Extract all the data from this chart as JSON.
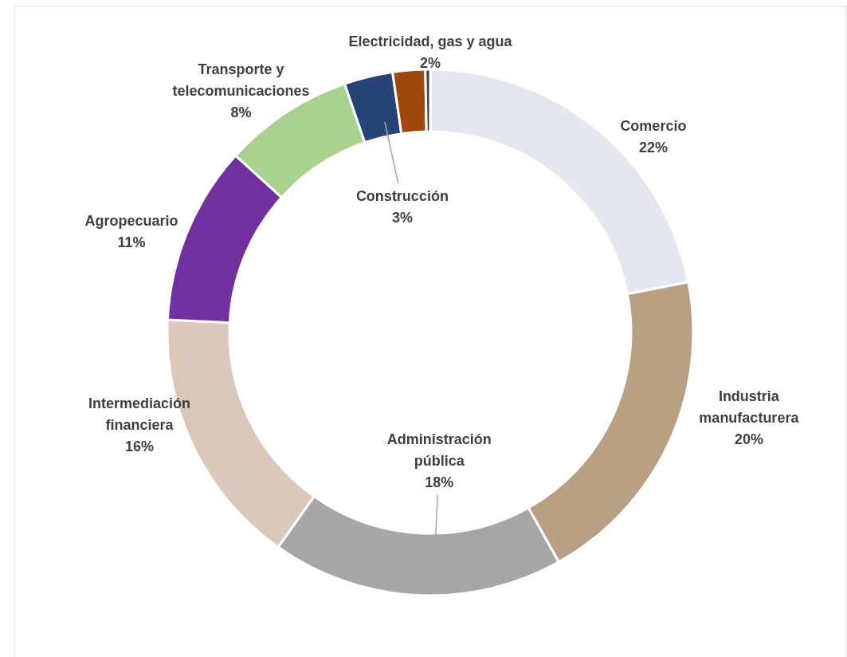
{
  "chart_data": {
    "type": "donut",
    "categories": [
      "Comercio",
      "Industria manufacturera",
      "Administración pública",
      "Intermediación financiera",
      "Agropecuario",
      "Transporte y telecomunicaciones",
      "Construcción",
      "Electricidad, gas y agua",
      null
    ],
    "values": [
      22,
      20,
      18,
      16,
      11,
      8,
      3,
      2,
      0.3
    ],
    "colors": [
      "#e4e7ef",
      "#b8a183",
      "#a6a6a6",
      "#dbc8bb",
      "#7030a0",
      "#a9d18e",
      "#264478",
      "#9e480e",
      "#404040"
    ],
    "value_labels": [
      "22%",
      "20%",
      "18%",
      "16%",
      "11%",
      "8%",
      "3%",
      "2%",
      null
    ]
  }
}
